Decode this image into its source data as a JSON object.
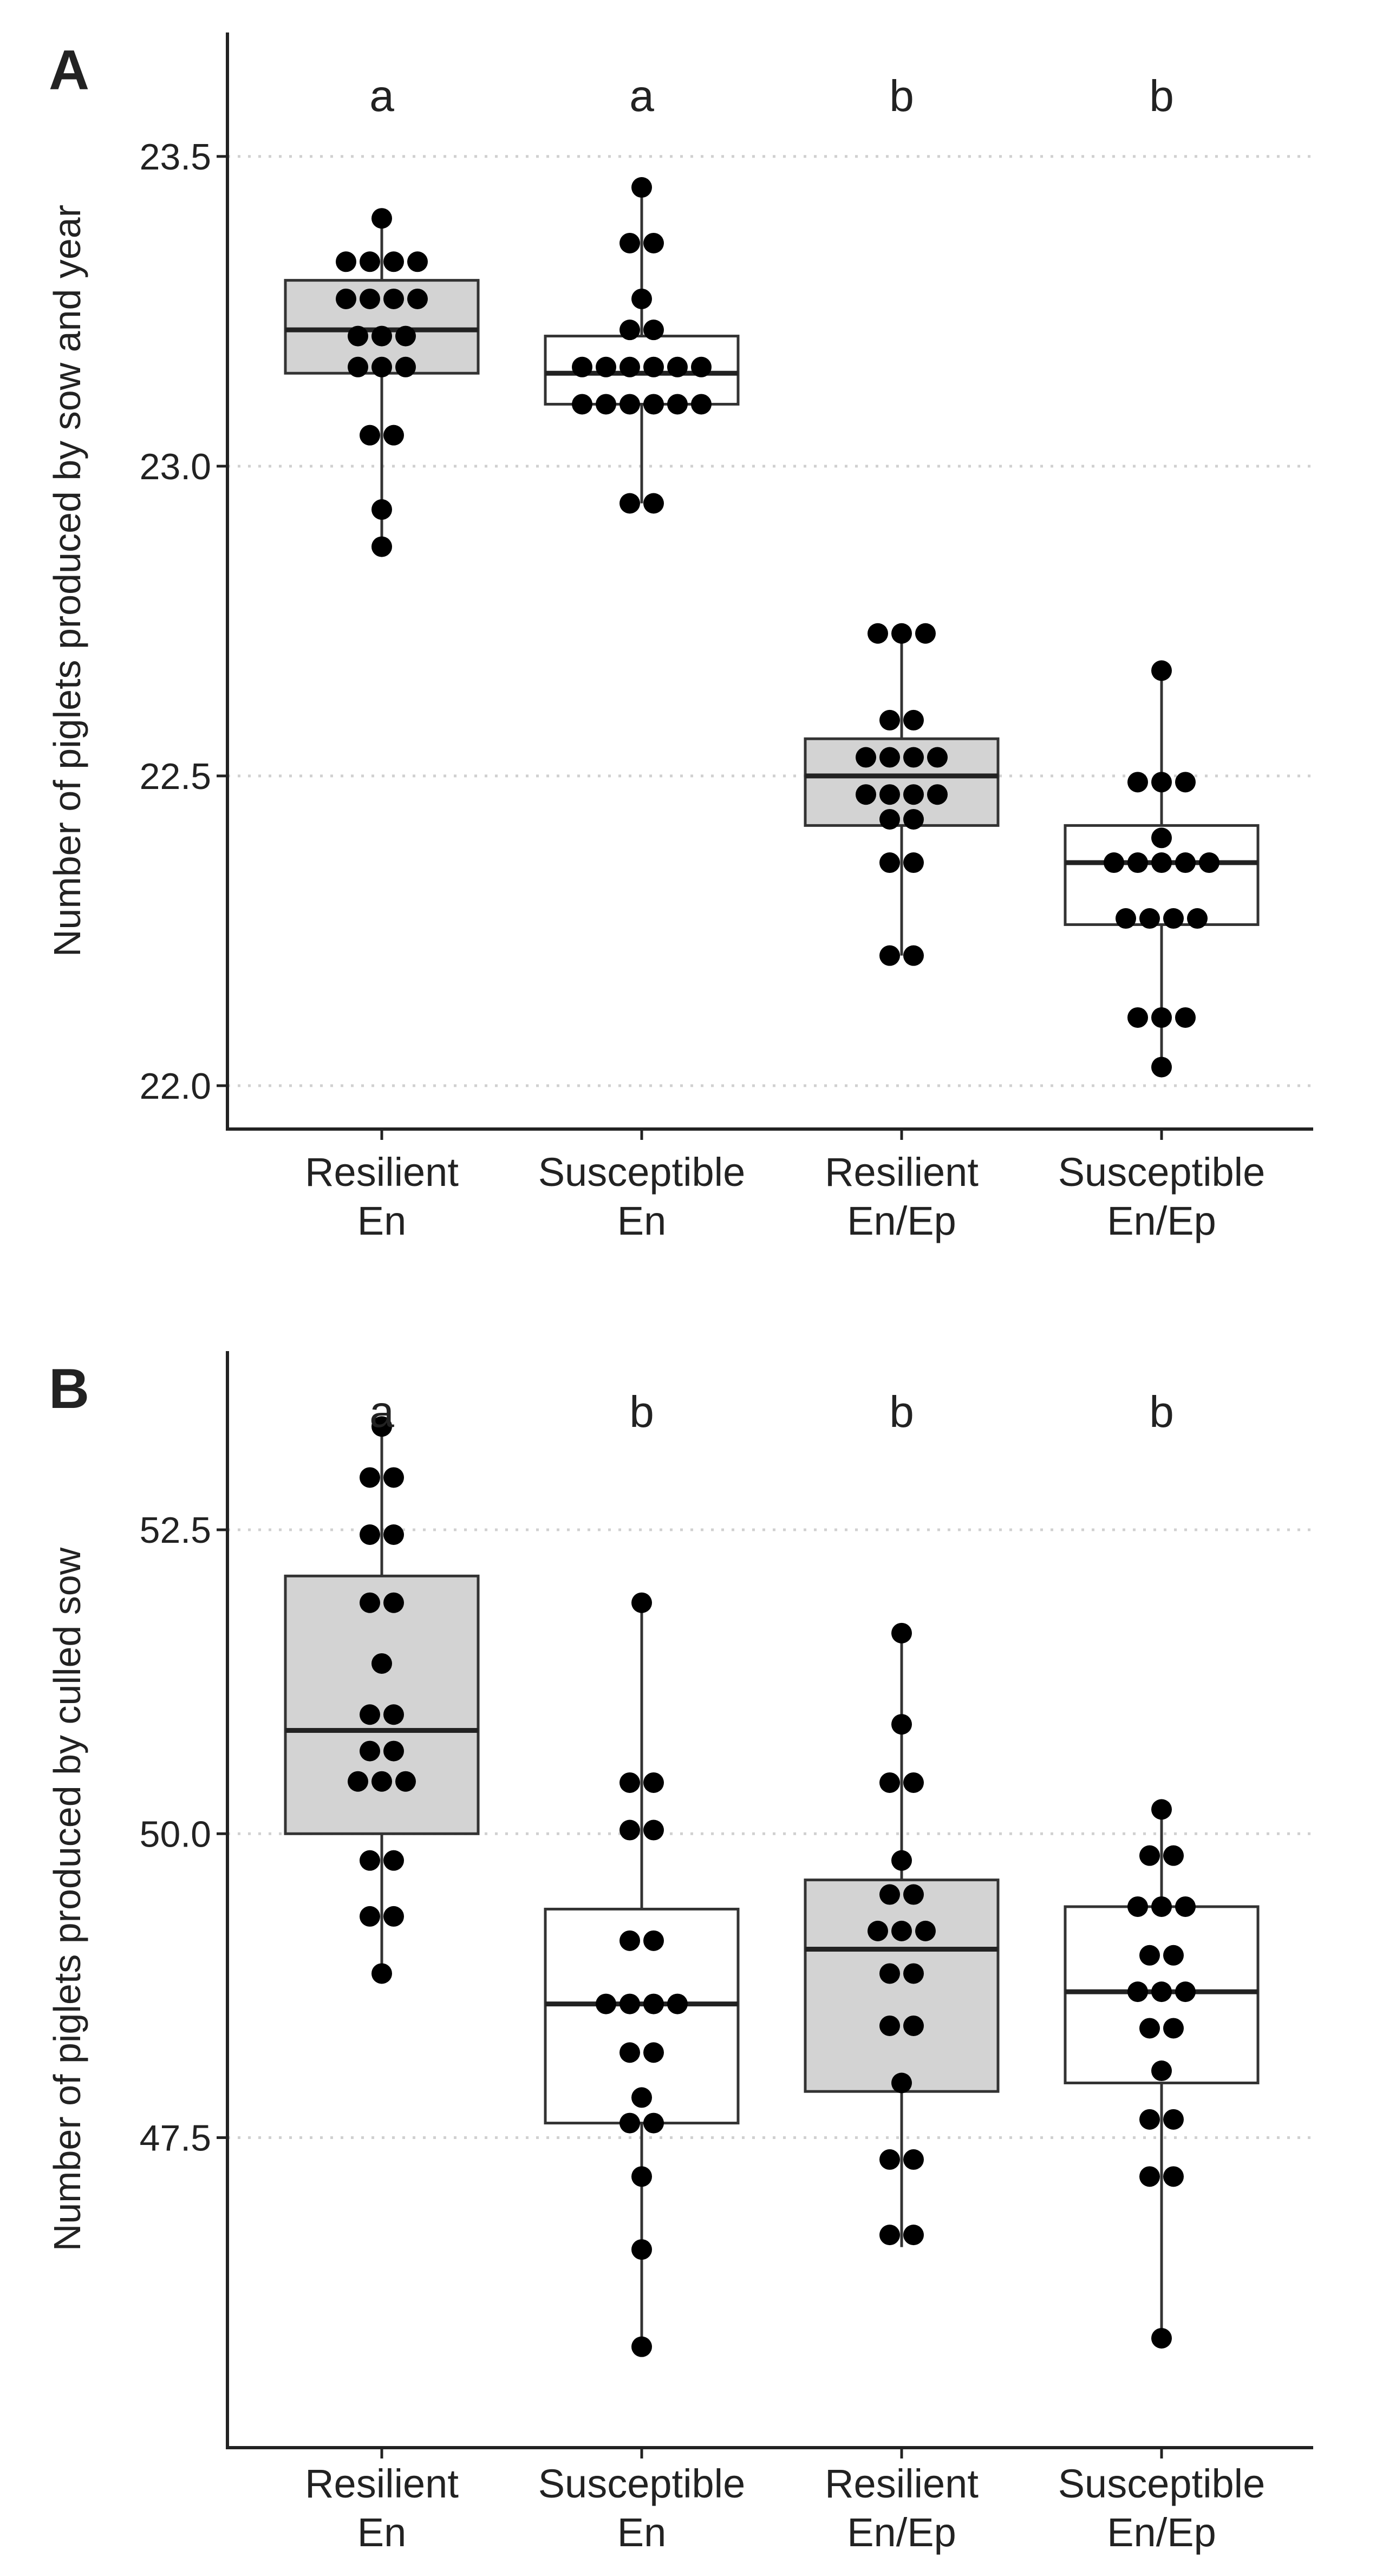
{
  "chart_data": [
    {
      "panel": "A",
      "type": "box",
      "title": "",
      "xlabel": "",
      "ylabel": "Number of piglets produced by sow and year",
      "ylim": [
        21.93,
        23.7
      ],
      "yticks": [
        22.0,
        22.5,
        23.0,
        23.5
      ],
      "ytick_labels": [
        "22.0",
        "22.5",
        "23.0",
        "23.5"
      ],
      "grid": "horizontal-dotted",
      "legend": "none",
      "categories": [
        {
          "label_line1": "Resilient",
          "label_line2": "En",
          "fill": "#d3d3d3",
          "letter": "a",
          "q1": 23.15,
          "median": 23.22,
          "q3": 23.3,
          "whisker_low": 22.87,
          "whisker_high": 23.4,
          "points": [
            23.4,
            23.33,
            23.33,
            23.33,
            23.33,
            23.27,
            23.27,
            23.27,
            23.27,
            23.21,
            23.21,
            23.21,
            23.16,
            23.16,
            23.16,
            23.05,
            23.05,
            22.93,
            22.87
          ]
        },
        {
          "label_line1": "Susceptible",
          "label_line2": "En",
          "fill": "#ffffff",
          "letter": "a",
          "q1": 23.1,
          "median": 23.15,
          "q3": 23.21,
          "whisker_low": 22.94,
          "whisker_high": 23.45,
          "points": [
            23.45,
            23.36,
            23.36,
            23.27,
            23.22,
            23.22,
            23.16,
            23.16,
            23.16,
            23.16,
            23.16,
            23.16,
            23.1,
            23.1,
            23.1,
            23.1,
            23.1,
            23.1,
            22.94,
            22.94
          ]
        },
        {
          "label_line1": "Resilient",
          "label_line2": "En/Ep",
          "fill": "#d3d3d3",
          "letter": "b",
          "q1": 22.42,
          "median": 22.5,
          "q3": 22.56,
          "whisker_low": 22.21,
          "whisker_high": 22.73,
          "points": [
            22.73,
            22.73,
            22.73,
            22.59,
            22.59,
            22.53,
            22.53,
            22.53,
            22.53,
            22.47,
            22.47,
            22.47,
            22.47,
            22.43,
            22.43,
            22.36,
            22.36,
            22.21,
            22.21
          ]
        },
        {
          "label_line1": "Susceptible",
          "label_line2": "En/Ep",
          "fill": "#ffffff",
          "letter": "b",
          "q1": 22.26,
          "median": 22.36,
          "q3": 22.42,
          "whisker_low": 22.03,
          "whisker_high": 22.67,
          "points": [
            22.67,
            22.49,
            22.49,
            22.49,
            22.4,
            22.36,
            22.36,
            22.36,
            22.36,
            22.36,
            22.27,
            22.27,
            22.27,
            22.27,
            22.11,
            22.11,
            22.11,
            22.03
          ]
        }
      ]
    },
    {
      "panel": "B",
      "type": "box",
      "title": "",
      "xlabel": "",
      "ylabel": "Number of piglets produced by culled sow",
      "ylim": [
        44.95,
        53.97
      ],
      "yticks": [
        47.5,
        50.0,
        52.5
      ],
      "ytick_labels": [
        "47.5",
        "50.0",
        "52.5"
      ],
      "grid": "horizontal-dotted",
      "legend": "none",
      "categories": [
        {
          "label_line1": "Resilient",
          "label_line2": "En",
          "fill": "#d3d3d3",
          "letter": "a",
          "q1": 50.0,
          "median": 50.85,
          "q3": 52.12,
          "whisker_low": 48.85,
          "whisker_high": 53.35,
          "points": [
            53.35,
            52.93,
            52.93,
            52.46,
            52.46,
            51.9,
            51.9,
            51.4,
            50.98,
            50.98,
            50.68,
            50.68,
            50.43,
            50.43,
            50.43,
            49.78,
            49.78,
            49.32,
            49.32,
            48.85
          ]
        },
        {
          "label_line1": "Susceptible",
          "label_line2": "En",
          "fill": "#ffffff",
          "letter": "b",
          "q1": 47.62,
          "median": 48.6,
          "q3": 49.38,
          "whisker_low": 45.78,
          "whisker_high": 51.9,
          "points": [
            51.9,
            50.42,
            50.42,
            50.03,
            50.03,
            49.12,
            49.12,
            48.6,
            48.6,
            48.6,
            48.6,
            48.2,
            48.2,
            47.83,
            47.62,
            47.62,
            47.18,
            46.58,
            45.78
          ]
        },
        {
          "label_line1": "Resilient",
          "label_line2": "En/Ep",
          "fill": "#d3d3d3",
          "letter": "b",
          "q1": 47.88,
          "median": 49.05,
          "q3": 49.62,
          "whisker_low": 46.6,
          "whisker_high": 51.65,
          "points": [
            51.65,
            50.9,
            50.42,
            50.42,
            49.78,
            49.5,
            49.5,
            49.2,
            49.2,
            49.2,
            48.85,
            48.85,
            48.42,
            48.42,
            47.95,
            47.32,
            47.32,
            46.7,
            46.7
          ]
        },
        {
          "label_line1": "Susceptible",
          "label_line2": "En/Ep",
          "fill": "#ffffff",
          "letter": "b",
          "q1": 47.95,
          "median": 48.7,
          "q3": 49.4,
          "whisker_low": 45.85,
          "whisker_high": 50.2,
          "points": [
            50.2,
            49.82,
            49.82,
            49.4,
            49.4,
            49.4,
            49.0,
            49.0,
            48.7,
            48.7,
            48.7,
            48.4,
            48.4,
            48.05,
            47.65,
            47.65,
            47.18,
            47.18,
            45.85
          ]
        }
      ]
    }
  ]
}
